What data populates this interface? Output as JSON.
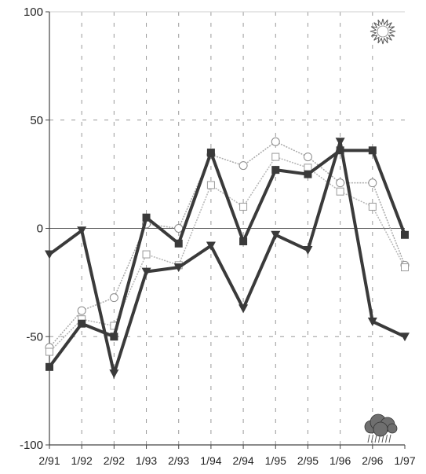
{
  "chart_data": {
    "type": "line",
    "title": "",
    "xlabel": "",
    "ylabel": "",
    "categories": [
      "2/91",
      "1/92",
      "2/92",
      "1/93",
      "2/93",
      "1/94",
      "2/94",
      "1/95",
      "2/95",
      "1/96",
      "2/96",
      "1/97"
    ],
    "ylim": [
      -100,
      100
    ],
    "yticks": [
      100,
      50,
      0,
      -50,
      -100
    ],
    "grid": true,
    "legend": "none",
    "icons": {
      "top_right": "sun-icon",
      "bottom_right": "rain-cloud-icon"
    },
    "series": [
      {
        "values": [
          -64,
          -44,
          -50,
          5,
          -7,
          35,
          -6,
          27,
          25,
          36,
          36,
          -3
        ],
        "marker": "square-filled",
        "style": "bold",
        "color": "#3a3a3a"
      },
      {
        "values": [
          -12,
          -1,
          -67,
          -20,
          -18,
          -8,
          -37,
          -3,
          -10,
          40,
          -43,
          -50
        ],
        "marker": "triangle-down-filled",
        "style": "bold",
        "color": "#3a3a3a"
      },
      {
        "values": [
          -55,
          -38,
          -32,
          2,
          0,
          34,
          29,
          40,
          33,
          21,
          21,
          -17
        ],
        "marker": "circle-open",
        "style": "light",
        "color": "#a8a8a8"
      },
      {
        "values": [
          -57,
          -42,
          -45,
          -12,
          -17,
          20,
          10,
          33,
          28,
          17,
          10,
          -18
        ],
        "marker": "square-open",
        "style": "light",
        "color": "#b5b5b5"
      }
    ]
  }
}
